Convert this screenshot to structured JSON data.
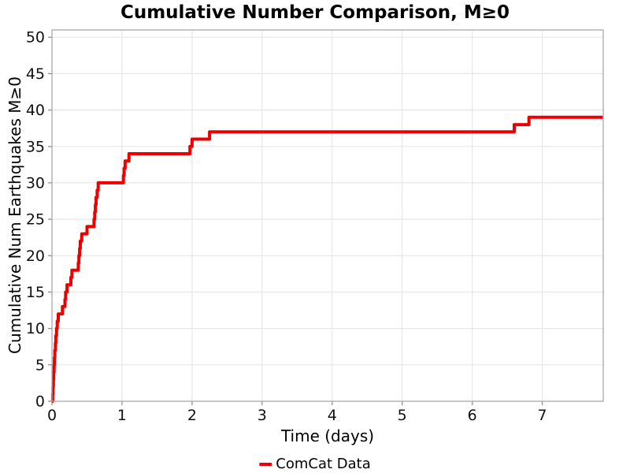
{
  "page": {
    "background": "#ffffff"
  },
  "colors": {
    "line": "#ee0000",
    "spine": "#a9a9a9",
    "grid": "#e7e7e7",
    "tick": "#888888",
    "text": "#111111"
  },
  "chart_data": {
    "type": "line",
    "title": "Cumulative Number Comparison, M≥0",
    "xlabel": "Time (days)",
    "ylabel": "Cumulative Num Earthquakes M≥0",
    "grid": true,
    "legend": {
      "position": "bottom-center",
      "entries": [
        {
          "label": "ComCat Data",
          "color": "#ee0000"
        }
      ]
    },
    "axes": {
      "xlim": [
        0,
        7.87
      ],
      "ylim": [
        0,
        51
      ],
      "xticks": [
        0,
        1,
        2,
        3,
        4,
        5,
        6,
        7
      ],
      "yticks": [
        0,
        5,
        10,
        15,
        20,
        25,
        30,
        35,
        40,
        45,
        50
      ]
    },
    "series": [
      {
        "name": "ComCat Data",
        "color": "#ee0000",
        "style": "step-post",
        "line_width": 4,
        "final_count": 39,
        "x_end": 7.87,
        "event_times_days": [
          0.01,
          0.015,
          0.02,
          0.025,
          0.03,
          0.035,
          0.04,
          0.05,
          0.055,
          0.065,
          0.075,
          0.09,
          0.15,
          0.185,
          0.195,
          0.215,
          0.27,
          0.285,
          0.375,
          0.385,
          0.395,
          0.405,
          0.425,
          0.5,
          0.6,
          0.61,
          0.62,
          0.63,
          0.645,
          0.66,
          1.02,
          1.03,
          1.045,
          1.1,
          1.97,
          2.0,
          2.25,
          6.6,
          6.81
        ]
      }
    ]
  }
}
